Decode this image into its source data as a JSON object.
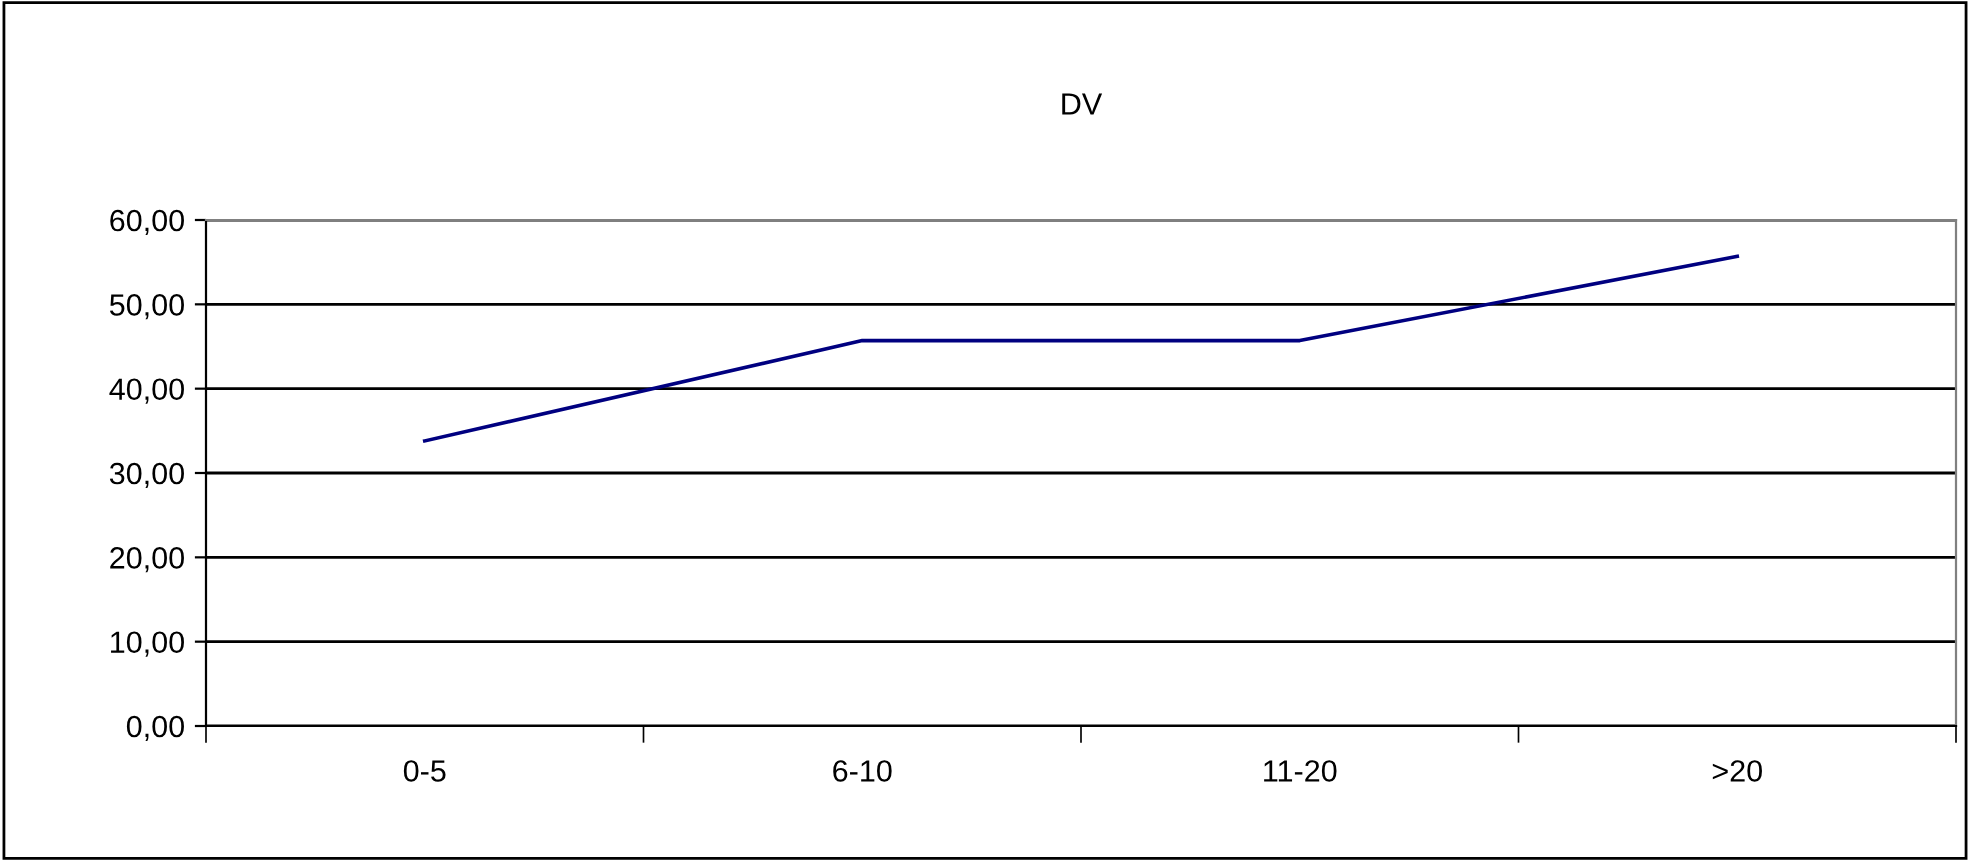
{
  "chart_data": {
    "type": "line",
    "title": "DV",
    "categories": [
      "0-5",
      "6-10",
      "11-20",
      ">20"
    ],
    "series": [
      {
        "color": "#000080",
        "values": [
          33.8,
          45.7,
          45.7,
          55.7
        ]
      }
    ],
    "ylim": [
      0,
      60
    ],
    "yticks": [
      {
        "value": 0,
        "label": "0,00"
      },
      {
        "value": 10,
        "label": "10,00"
      },
      {
        "value": 20,
        "label": "20,00"
      },
      {
        "value": 30,
        "label": "30,00"
      },
      {
        "value": 40,
        "label": "40,00"
      },
      {
        "value": 50,
        "label": "50,00"
      },
      {
        "value": 60,
        "label": "60,00"
      }
    ],
    "grid": "y",
    "legend": false,
    "marker": "none"
  }
}
